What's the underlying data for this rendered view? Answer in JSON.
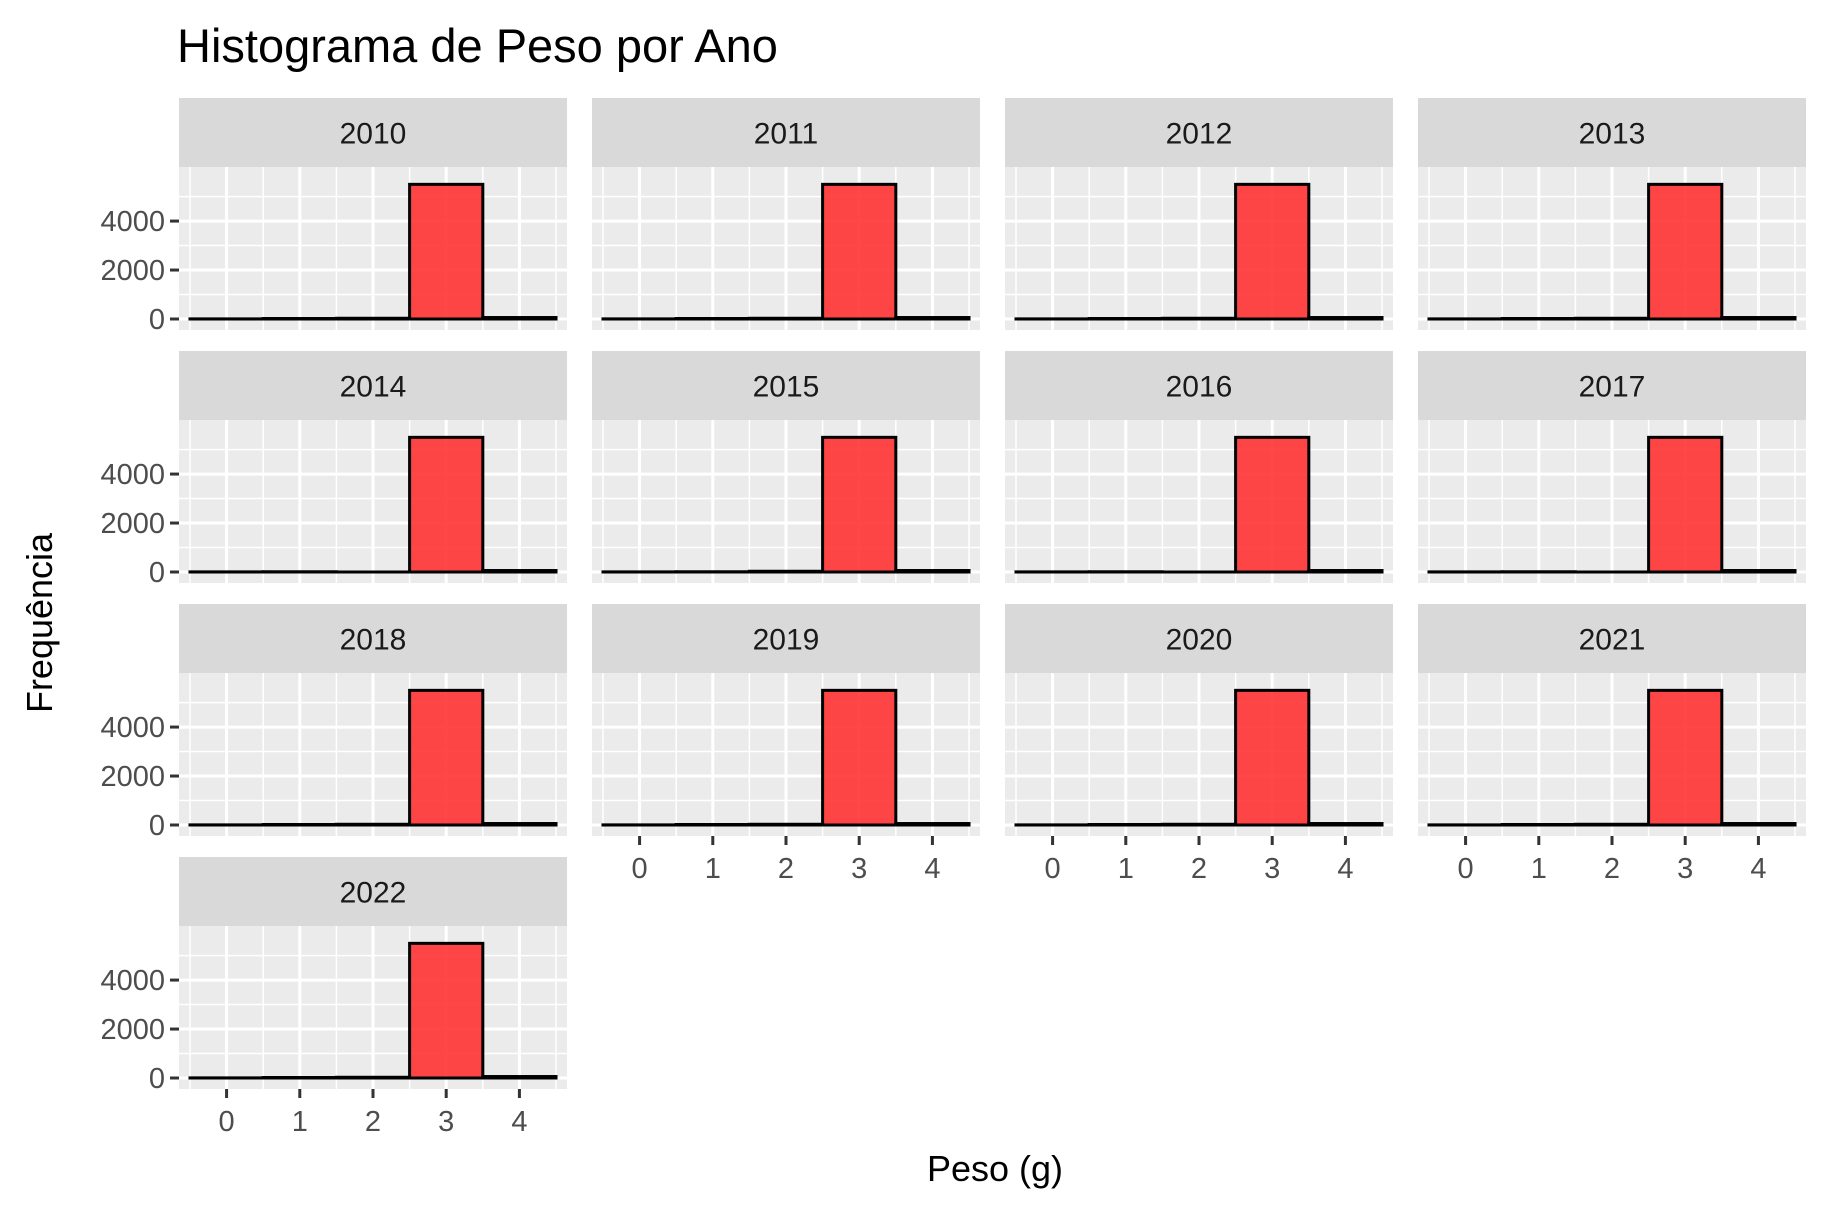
{
  "chart_data": {
    "type": "bar",
    "title": "Histograma de Peso por Ano",
    "xlabel": "Peso (g)",
    "ylabel": "Frequência",
    "bin_centers": [
      0,
      1,
      2,
      3,
      4
    ],
    "x_ticks": [
      "0",
      "1",
      "2",
      "3",
      "4"
    ],
    "y_ticks": [
      "0",
      "2000",
      "4000"
    ],
    "ylim": [
      0,
      5800
    ],
    "grid": true,
    "legend": "none",
    "colors": {
      "fill": "#ff3333",
      "border": "#000000",
      "panel": "#ebebeb",
      "strip": "#d9d9d9",
      "grid": "#ffffff"
    },
    "panels": [
      {
        "label": "2010",
        "values": [
          5,
          20,
          30,
          5500,
          60
        ]
      },
      {
        "label": "2011",
        "values": [
          5,
          20,
          30,
          5500,
          60
        ]
      },
      {
        "label": "2012",
        "values": [
          5,
          20,
          30,
          5500,
          60
        ]
      },
      {
        "label": "2013",
        "values": [
          5,
          20,
          30,
          5500,
          60
        ]
      },
      {
        "label": "2014",
        "values": [
          5,
          10,
          0,
          5500,
          60
        ]
      },
      {
        "label": "2015",
        "values": [
          5,
          10,
          30,
          5500,
          60
        ]
      },
      {
        "label": "2016",
        "values": [
          5,
          10,
          0,
          5500,
          60
        ]
      },
      {
        "label": "2017",
        "values": [
          5,
          10,
          0,
          5500,
          60
        ]
      },
      {
        "label": "2018",
        "values": [
          5,
          20,
          30,
          5500,
          60
        ]
      },
      {
        "label": "2019",
        "values": [
          5,
          20,
          30,
          5500,
          60
        ]
      },
      {
        "label": "2020",
        "values": [
          5,
          20,
          30,
          5500,
          60
        ]
      },
      {
        "label": "2021",
        "values": [
          5,
          20,
          30,
          5500,
          60
        ]
      },
      {
        "label": "2022",
        "values": [
          5,
          20,
          30,
          5500,
          60
        ]
      }
    ]
  }
}
